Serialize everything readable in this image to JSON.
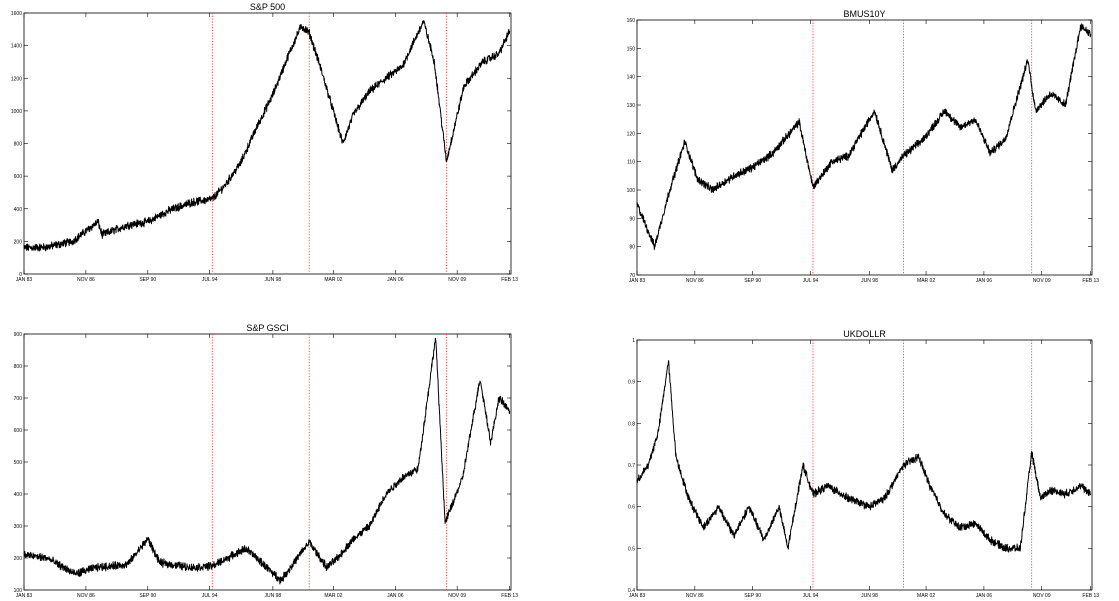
{
  "x_tick_labels": [
    "JAN 83",
    "NOV 86",
    "SEP 90",
    "JUL 94",
    "JUN 98",
    "MAR 02",
    "JAN 06",
    "NOV 09",
    "FEB 13"
  ],
  "vertical_markers": [
    "1994-09",
    "2000-09",
    "2009-03"
  ],
  "marker_color": "#ff3b30",
  "line_color": "#000000",
  "chart_data": [
    {
      "type": "line",
      "title": "S&P 500",
      "ylim": [
        0,
        1600
      ],
      "yticks": [
        0,
        200,
        400,
        600,
        800,
        1000,
        1200,
        1400,
        1600
      ],
      "x": [
        "1983-01",
        "1984-06",
        "1986-01",
        "1987-08",
        "1987-11",
        "1989-06",
        "1990-09",
        "1992-01",
        "1993-06",
        "1994-09",
        "1995-06",
        "1996-06",
        "1997-06",
        "1998-06",
        "1999-06",
        "2000-03",
        "2000-09",
        "2001-06",
        "2002-10",
        "2003-06",
        "2004-06",
        "2005-06",
        "2006-06",
        "2007-10",
        "2008-06",
        "2009-03",
        "2010-04",
        "2011-06",
        "2012-06",
        "2013-02"
      ],
      "values": [
        160,
        165,
        200,
        320,
        240,
        300,
        320,
        390,
        440,
        460,
        540,
        680,
        900,
        1100,
        1350,
        1520,
        1480,
        1250,
        800,
        980,
        1120,
        1200,
        1270,
        1550,
        1300,
        690,
        1150,
        1300,
        1350,
        1490
      ]
    },
    {
      "type": "line",
      "title": "BMUS10Y",
      "ylim": [
        70,
        160
      ],
      "yticks": [
        70,
        80,
        90,
        100,
        110,
        120,
        130,
        140,
        150,
        160
      ],
      "x": [
        "1983-01",
        "1984-03",
        "1985-03",
        "1986-03",
        "1987-01",
        "1988-01",
        "1989-06",
        "1990-09",
        "1992-01",
        "1993-10",
        "1994-09",
        "1995-12",
        "1997-01",
        "1998-10",
        "1999-12",
        "2000-09",
        "2002-01",
        "2003-06",
        "2004-06",
        "2005-06",
        "2006-06",
        "2007-06",
        "2008-12",
        "2009-06",
        "2010-06",
        "2011-06",
        "2012-06",
        "2013-02"
      ],
      "values": [
        95,
        80,
        100,
        117,
        104,
        100,
        105,
        108,
        113,
        124,
        101,
        110,
        112,
        128,
        107,
        112,
        118,
        128,
        122,
        125,
        113,
        118,
        146,
        128,
        134,
        130,
        158,
        155
      ]
    },
    {
      "type": "line",
      "title": "S&P GSCI",
      "ylim": [
        100,
        900
      ],
      "yticks": [
        100,
        200,
        300,
        400,
        500,
        600,
        700,
        800,
        900
      ],
      "x": [
        "1983-01",
        "1984-06",
        "1986-03",
        "1987-06",
        "1989-06",
        "1990-09",
        "1991-06",
        "1993-06",
        "1994-09",
        "1996-10",
        "1998-12",
        "2000-09",
        "2001-10",
        "2002-06",
        "2003-06",
        "2004-06",
        "2005-06",
        "2006-06",
        "2007-06",
        "2008-07",
        "2009-02",
        "2010-03",
        "2011-04",
        "2011-12",
        "2012-06",
        "2013-02"
      ],
      "values": [
        210,
        200,
        150,
        170,
        180,
        260,
        185,
        170,
        175,
        230,
        130,
        250,
        170,
        200,
        260,
        300,
        400,
        450,
        480,
        890,
        310,
        450,
        760,
        560,
        700,
        660
      ]
    },
    {
      "type": "line",
      "title": "UKDOLLR",
      "ylim": [
        0.4,
        1.0
      ],
      "yticks": [
        0.4,
        0.5,
        0.6,
        0.7,
        0.8,
        0.9,
        1.0
      ],
      "x": [
        "1983-01",
        "1983-10",
        "1984-06",
        "1985-02",
        "1985-08",
        "1986-06",
        "1987-06",
        "1988-06",
        "1989-06",
        "1990-06",
        "1991-06",
        "1992-06",
        "1993-01",
        "1994-01",
        "1994-09",
        "1995-09",
        "1997-01",
        "1998-06",
        "1999-06",
        "2000-09",
        "2001-09",
        "2002-06",
        "2003-06",
        "2004-06",
        "2005-06",
        "2006-06",
        "2007-06",
        "2008-06",
        "2009-03",
        "2009-10",
        "2010-06",
        "2011-06",
        "2012-06",
        "2013-02"
      ],
      "values": [
        0.66,
        0.7,
        0.78,
        0.95,
        0.72,
        0.62,
        0.55,
        0.6,
        0.53,
        0.6,
        0.52,
        0.6,
        0.5,
        0.7,
        0.63,
        0.65,
        0.62,
        0.6,
        0.62,
        0.7,
        0.72,
        0.65,
        0.58,
        0.55,
        0.56,
        0.52,
        0.5,
        0.5,
        0.73,
        0.62,
        0.64,
        0.63,
        0.65,
        0.63
      ]
    }
  ]
}
